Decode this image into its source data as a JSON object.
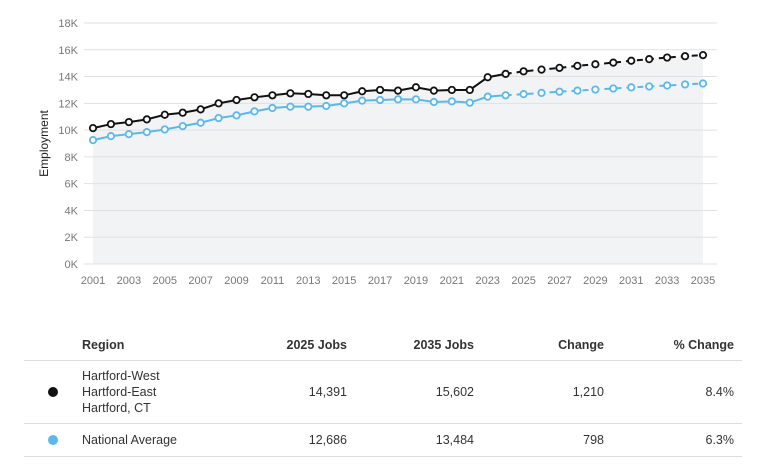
{
  "chart_data": {
    "type": "line",
    "title": "",
    "xlabel": "",
    "ylabel": "Employment",
    "xlim": [
      2001,
      2035
    ],
    "ylim": [
      0,
      18000
    ],
    "yticks": [
      0,
      2000,
      4000,
      6000,
      8000,
      10000,
      12000,
      14000,
      16000,
      18000
    ],
    "ytick_labels": [
      "0K",
      "2K",
      "4K",
      "6K",
      "8K",
      "10K",
      "12K",
      "14K",
      "16K",
      "18K"
    ],
    "xticks": [
      2001,
      2003,
      2005,
      2007,
      2009,
      2011,
      2013,
      2015,
      2017,
      2019,
      2021,
      2023,
      2025,
      2027,
      2029,
      2031,
      2033,
      2035
    ],
    "grid": true,
    "projection_start": 2024,
    "x": [
      2001,
      2002,
      2003,
      2004,
      2005,
      2006,
      2007,
      2008,
      2009,
      2010,
      2011,
      2012,
      2013,
      2014,
      2015,
      2016,
      2017,
      2018,
      2019,
      2020,
      2021,
      2022,
      2023,
      2024,
      2025,
      2026,
      2027,
      2028,
      2029,
      2030,
      2031,
      2032,
      2033,
      2034,
      2035
    ],
    "series": [
      {
        "name": "Hartford-West Hartford-East Hartford, CT",
        "color": "#111111",
        "values": [
          10150,
          10450,
          10600,
          10800,
          11150,
          11300,
          11550,
          12000,
          12250,
          12450,
          12600,
          12750,
          12700,
          12600,
          12600,
          12900,
          13000,
          12950,
          13200,
          12950,
          13000,
          13000,
          13950,
          14200,
          14391,
          14520,
          14650,
          14800,
          14920,
          15040,
          15180,
          15300,
          15420,
          15520,
          15602
        ]
      },
      {
        "name": "National Average",
        "color": "#5bb8ec",
        "values": [
          9250,
          9550,
          9700,
          9850,
          10050,
          10300,
          10550,
          10900,
          11100,
          11400,
          11650,
          11750,
          11750,
          11800,
          12000,
          12200,
          12250,
          12300,
          12300,
          12100,
          12150,
          12050,
          12500,
          12600,
          12686,
          12780,
          12870,
          12950,
          13030,
          13110,
          13190,
          13260,
          13330,
          13410,
          13484
        ]
      }
    ]
  },
  "table": {
    "headers": {
      "region": "Region",
      "jobs_2025": "2025 Jobs",
      "jobs_2035": "2035 Jobs",
      "change": "Change",
      "pct_change": "% Change"
    },
    "rows": [
      {
        "region_lines": [
          "Hartford-West",
          "Hartford-East",
          "Hartford, CT"
        ],
        "jobs_2025": "14,391",
        "jobs_2035": "15,602",
        "change": "1,210",
        "pct_change": "8.4%",
        "dot_color": "#111111"
      },
      {
        "region_lines": [
          "National Average"
        ],
        "jobs_2025": "12,686",
        "jobs_2035": "13,484",
        "change": "798",
        "pct_change": "6.3%",
        "dot_color": "#5bb8ec"
      }
    ]
  }
}
